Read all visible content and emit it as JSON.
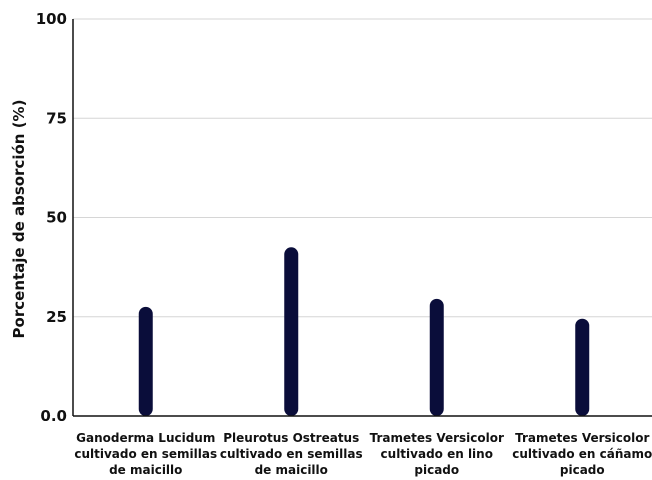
{
  "chart_data": {
    "type": "bar",
    "title": "",
    "xlabel": "",
    "ylabel": "Porcentaje de absorción (%)",
    "ylim": [
      0,
      100
    ],
    "yticks": [
      0,
      25,
      50,
      75,
      100
    ],
    "ytick_labels": [
      "0.0",
      "25",
      "50",
      "75",
      "100"
    ],
    "grid": "horizontal",
    "categories": [
      [
        "Ganoderma Lucidum",
        "cultivado en semillas",
        "de maicillo"
      ],
      [
        "Pleurotus Ostreatus",
        "cultivado en semillas",
        "de maicillo"
      ],
      [
        "Trametes Versicolor",
        "cultivado en lino",
        "picado"
      ],
      [
        "Trametes Versicolor",
        "cultivado en cáñamo",
        "picado"
      ]
    ],
    "values": [
      27.5,
      42.5,
      29.5,
      24.5
    ],
    "colors": {
      "bar": "#0a0d3a",
      "grid": "#d6d6d6",
      "axis": "#111111"
    }
  }
}
